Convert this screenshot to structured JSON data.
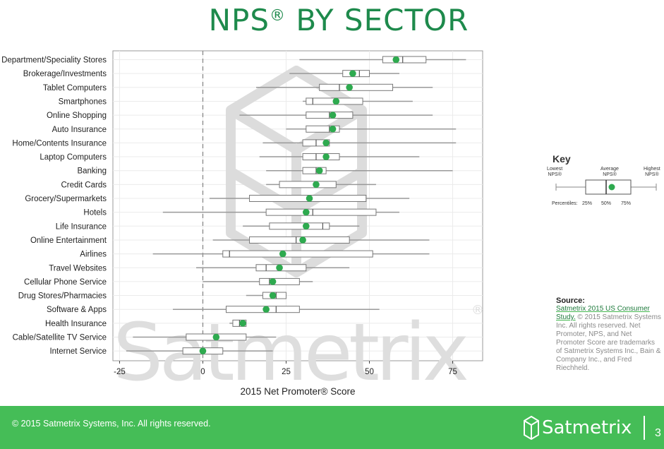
{
  "title_main": "NPS",
  "title_sup": "®",
  "title_rest": " BY SECTOR",
  "watermark": "Satmetrix",
  "watermark_reg": "®",
  "key": {
    "title": "Key",
    "lowest": "Lowest",
    "lowest_sub": "NPS®",
    "average": "Average",
    "average_sub": "NPS®",
    "highest": "Highest",
    "highest_sub": "NPS®",
    "percentiles_label": "Percentiles:",
    "p25": "25%",
    "p50": "50%",
    "p75": "75%"
  },
  "source": {
    "heading": "Source:",
    "link": "Satmetrix 2015 US Consumer Study.",
    "text": "© 2015 Satmetrix Systems Inc. All rights reserved. Net Promoter, NPS, and Net Promoter Score are trademarks of Satmetrix Systems Inc., Bain & Company Inc., and Fred Riechheld."
  },
  "footer": {
    "copyright": "© 2015 Satmetrix Systems, Inc. All rights reserved.",
    "logo": "Satmetrix",
    "page": "3"
  },
  "colors": {
    "accent": "#45bd57",
    "title": "#1e8a4c",
    "dot": "#2eaa4f",
    "box": "#888888"
  },
  "chart_data": {
    "type": "boxplot",
    "xlabel": "2015 Net Promoter® Score",
    "xlim": [
      -27,
      84
    ],
    "xticks": [
      -25,
      0,
      25,
      50,
      75
    ],
    "reference_line": 0,
    "grid": true,
    "series": [
      {
        "name": "Department/Speciality Stores",
        "min": 29,
        "q1": 54,
        "median": 60,
        "q3": 67,
        "max": 79,
        "avg": 58
      },
      {
        "name": "Brokerage/Investments",
        "min": 26,
        "q1": 42,
        "median": 47,
        "q3": 50,
        "max": 59,
        "avg": 45
      },
      {
        "name": "Tablet Computers",
        "min": 16,
        "q1": 35,
        "median": 41,
        "q3": 57,
        "max": 69,
        "avg": 44
      },
      {
        "name": "Smartphones",
        "min": 30,
        "q1": 31,
        "median": 33,
        "q3": 48,
        "max": 63,
        "avg": 40
      },
      {
        "name": "Online Shopping",
        "min": 11,
        "q1": 31,
        "median": 38,
        "q3": 45,
        "max": 69,
        "avg": 39
      },
      {
        "name": "Auto Insurance",
        "min": 25,
        "q1": 31,
        "median": 38,
        "q3": 41,
        "max": 76,
        "avg": 39
      },
      {
        "name": "Home/Contents Insurance",
        "min": 18,
        "q1": 30,
        "median": 34,
        "q3": 38,
        "max": 76,
        "avg": 37
      },
      {
        "name": "Laptop Computers",
        "min": 17,
        "q1": 30,
        "median": 34,
        "q3": 41,
        "max": 65,
        "avg": 37
      },
      {
        "name": "Banking",
        "min": 19,
        "q1": 30,
        "median": 34,
        "q3": 37,
        "max": 75,
        "avg": 35
      },
      {
        "name": "Credit Cards",
        "min": 19,
        "q1": 23,
        "median": 34,
        "q3": 40,
        "max": 52,
        "avg": 34
      },
      {
        "name": "Grocery/Supermarkets",
        "min": 2,
        "q1": 14,
        "median": 32,
        "q3": 49,
        "max": 62,
        "avg": 32
      },
      {
        "name": "Hotels",
        "min": -12,
        "q1": 19,
        "median": 33,
        "q3": 52,
        "max": 59,
        "avg": 31
      },
      {
        "name": "Life Insurance",
        "min": 12,
        "q1": 20,
        "median": 36,
        "q3": 38,
        "max": 47,
        "avg": 31
      },
      {
        "name": "Online Entertainment",
        "min": 3,
        "q1": 14,
        "median": 28,
        "q3": 44,
        "max": 68,
        "avg": 30
      },
      {
        "name": "Airlines",
        "min": -15,
        "q1": 6,
        "median": 8,
        "q3": 51,
        "max": 68,
        "avg": 24
      },
      {
        "name": "Travel Websites",
        "min": -2,
        "q1": 16,
        "median": 19,
        "q3": 31,
        "max": 44,
        "avg": 23
      },
      {
        "name": "Cellular Phone Service",
        "min": 0,
        "q1": 17,
        "median": 20,
        "q3": 29,
        "max": 33,
        "avg": 21
      },
      {
        "name": "Drug Stores/Pharmacies",
        "min": 13,
        "q1": 18,
        "median": 22,
        "q3": 25,
        "max": 25,
        "avg": 21
      },
      {
        "name": "Software & Apps",
        "min": -9,
        "q1": 7,
        "median": 22,
        "q3": 29,
        "max": 53,
        "avg": 19
      },
      {
        "name": "Health Insurance",
        "min": 8,
        "q1": 9,
        "median": 11,
        "q3": 13,
        "max": 13,
        "avg": 12
      },
      {
        "name": "Cable/Satellite TV Service",
        "min": -21,
        "q1": -5,
        "median": 4,
        "q3": 13,
        "max": 22,
        "avg": 4
      },
      {
        "name": "Internet Service",
        "min": -23,
        "q1": -6,
        "median": 0,
        "q3": 6,
        "max": 21,
        "avg": 0
      }
    ]
  }
}
